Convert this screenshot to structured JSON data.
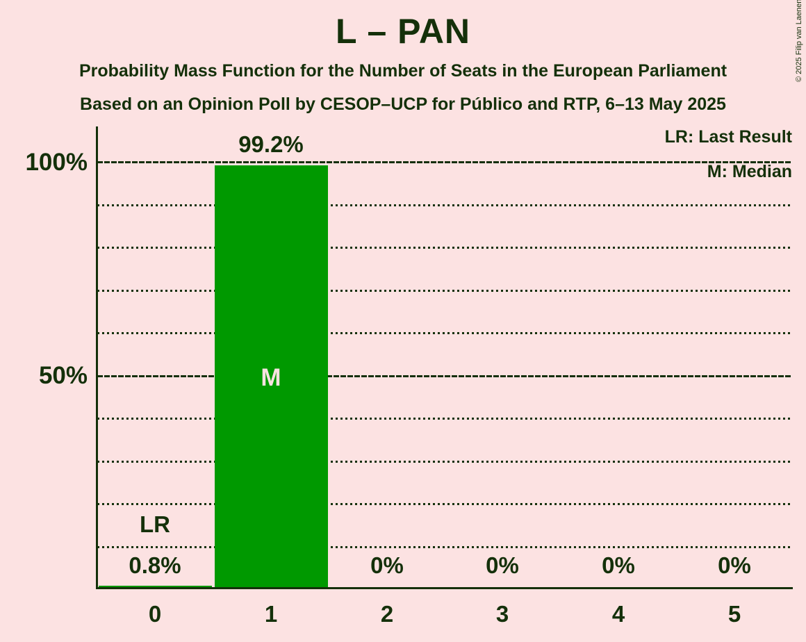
{
  "title": "L – PAN",
  "subtitle1": "Probability Mass Function for the Number of Seats in the European Parliament",
  "subtitle2": "Based on an Opinion Poll by CESOP–UCP for Público and RTP, 6–13 May 2025",
  "copyright": "© 2025 Filip van Laenen",
  "legend": {
    "lr": "LR: Last Result",
    "m": "M: Median"
  },
  "y_axis": {
    "label_100": "100%",
    "label_50": "50%"
  },
  "colors": {
    "background": "#FCE2E2",
    "bar": "#009900",
    "text": "#14300A",
    "median_label": "#FCE2E2"
  },
  "chart_data": {
    "type": "bar",
    "title": "L – PAN",
    "categories": [
      "0",
      "1",
      "2",
      "3",
      "4",
      "5"
    ],
    "values": [
      0.8,
      99.2,
      0,
      0,
      0,
      0
    ],
    "value_labels": [
      "0.8%",
      "99.2%",
      "0%",
      "0%",
      "0%",
      "0%"
    ],
    "ylim": [
      0,
      100
    ],
    "y_tick_labels": [
      "100%",
      "50%"
    ],
    "gridline_step_pct": 10,
    "solid_gridlines_pct": [
      50,
      100
    ],
    "legend_position": "top-right",
    "annotations": {
      "last_result_marker": "LR",
      "last_result_category": "0",
      "median_marker": "M",
      "median_category": "1"
    }
  }
}
